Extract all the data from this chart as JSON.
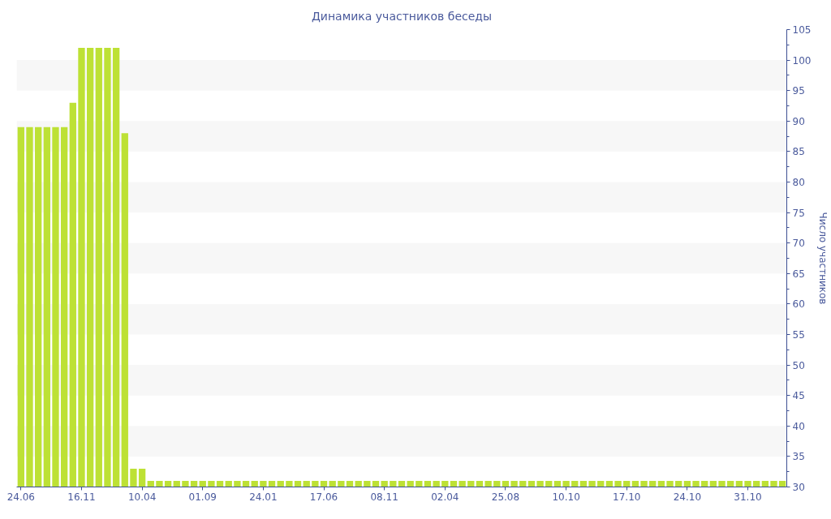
{
  "chart_data": {
    "type": "bar",
    "title": "Динамика участников беседы",
    "ylabel": "Число участников",
    "categories": [
      "24.06",
      null,
      null,
      null,
      null,
      null,
      null,
      "16.11",
      null,
      null,
      null,
      null,
      null,
      null,
      "10.04",
      null,
      null,
      null,
      null,
      null,
      null,
      "01.09",
      null,
      null,
      null,
      null,
      null,
      null,
      "24.01",
      null,
      null,
      null,
      null,
      null,
      null,
      "17.06",
      null,
      null,
      null,
      null,
      null,
      null,
      "08.11",
      null,
      null,
      null,
      null,
      null,
      null,
      "02.04",
      null,
      null,
      null,
      null,
      null,
      null,
      "25.08",
      null,
      null,
      null,
      null,
      null,
      null,
      "10.10",
      null,
      null,
      null,
      null,
      null,
      null,
      "17.10",
      null,
      null,
      null,
      null,
      null,
      null,
      "24.10",
      null,
      null,
      null,
      null,
      null,
      null,
      "31.10",
      null,
      null,
      null,
      null
    ],
    "values": [
      89,
      89,
      89,
      89,
      89,
      89,
      93,
      102,
      102,
      102,
      102,
      102,
      88,
      33,
      33,
      31,
      31,
      31,
      31,
      31,
      31,
      31,
      31,
      31,
      31,
      31,
      31,
      31,
      31,
      31,
      31,
      31,
      31,
      31,
      31,
      31,
      31,
      31,
      31,
      31,
      31,
      31,
      31,
      31,
      31,
      31,
      31,
      31,
      31,
      31,
      31,
      31,
      31,
      31,
      31,
      31,
      31,
      31,
      31,
      31,
      31,
      31,
      31,
      31,
      31,
      31,
      31,
      31,
      31,
      31,
      31,
      31,
      31,
      31,
      31,
      31,
      31,
      31,
      31,
      31,
      31,
      31,
      31,
      31,
      31,
      31,
      31,
      31,
      31
    ],
    "color": "#bde135",
    "ylim": [
      30,
      105
    ],
    "yticks": [
      30,
      35,
      40,
      45,
      50,
      55,
      60,
      65,
      70,
      75,
      80,
      85,
      90,
      95,
      100,
      105
    ],
    "bands": [
      {
        "axis": "y",
        "from": 35,
        "to": 40,
        "color": "#f7f7f7"
      },
      {
        "axis": "y",
        "from": 45,
        "to": 50,
        "color": "#f7f7f7"
      },
      {
        "axis": "y",
        "from": 55,
        "to": 60,
        "color": "#f7f7f7"
      },
      {
        "axis": "y",
        "from": 65,
        "to": 70,
        "color": "#f7f7f7"
      },
      {
        "axis": "y",
        "from": 75,
        "to": 80,
        "color": "#f7f7f7"
      },
      {
        "axis": "y",
        "from": 85,
        "to": 90,
        "color": "#f7f7f7"
      },
      {
        "axis": "y",
        "from": 95,
        "to": 100,
        "color": "#f7f7f7"
      }
    ]
  }
}
